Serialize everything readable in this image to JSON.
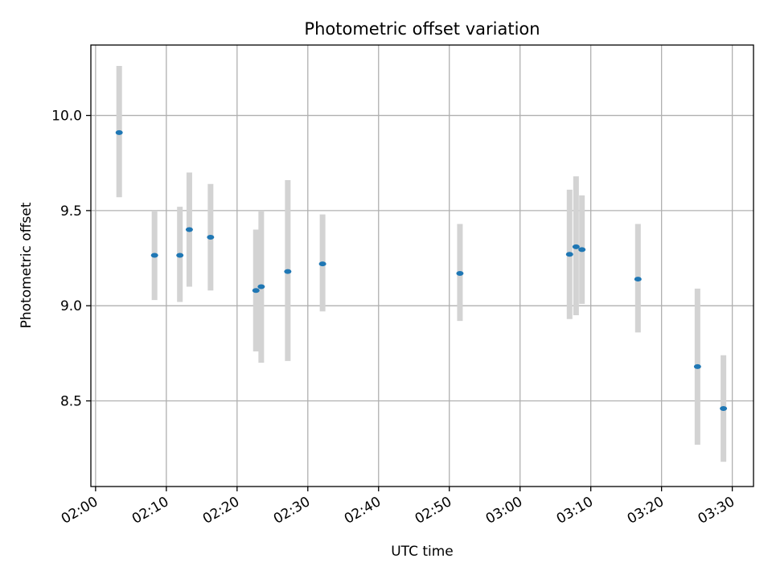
{
  "chart_data": {
    "type": "scatter",
    "title": "Photometric offset variation",
    "xlabel": "UTC time",
    "ylabel": "Photometric offset",
    "x_tick_labels": [
      "02:00",
      "02:10",
      "02:20",
      "02:30",
      "02:40",
      "02:50",
      "03:00",
      "03:10",
      "03:20",
      "03:30"
    ],
    "y_tick_labels": [
      "8.5",
      "9.0",
      "9.5",
      "10.0"
    ],
    "x_ticks": [
      "02:00",
      "02:10",
      "02:20",
      "02:30",
      "02:40",
      "02:50",
      "03:00",
      "03:10",
      "03:20",
      "03:30"
    ],
    "y_ticks": [
      8.5,
      9.0,
      9.5,
      10.0
    ],
    "xlim": [
      "01:59:20",
      "03:33:00"
    ],
    "ylim": [
      8.05,
      10.37
    ],
    "grid": true,
    "marker_color": "#1f77b4",
    "errorbar_color": "#d3d3d3",
    "points": [
      {
        "x": "02:03:20",
        "y": 9.91,
        "low": 9.57,
        "high": 10.26
      },
      {
        "x": "02:08:20",
        "y": 9.265,
        "low": 9.03,
        "high": 9.5
      },
      {
        "x": "02:11:55",
        "y": 9.265,
        "low": 9.02,
        "high": 9.52
      },
      {
        "x": "02:13:15",
        "y": 9.4,
        "low": 9.1,
        "high": 9.7
      },
      {
        "x": "02:16:15",
        "y": 9.36,
        "low": 9.08,
        "high": 9.64
      },
      {
        "x": "02:22:40",
        "y": 9.08,
        "low": 8.76,
        "high": 9.4
      },
      {
        "x": "02:23:25",
        "y": 9.1,
        "low": 8.7,
        "high": 9.5
      },
      {
        "x": "02:27:10",
        "y": 9.18,
        "low": 8.71,
        "high": 9.66
      },
      {
        "x": "02:32:05",
        "y": 9.22,
        "low": 8.97,
        "high": 9.48
      },
      {
        "x": "02:51:30",
        "y": 9.17,
        "low": 8.92,
        "high": 9.43
      },
      {
        "x": "03:07:00",
        "y": 9.27,
        "low": 8.93,
        "high": 9.61
      },
      {
        "x": "03:07:55",
        "y": 9.31,
        "low": 8.95,
        "high": 9.68
      },
      {
        "x": "03:08:45",
        "y": 9.295,
        "low": 9.01,
        "high": 9.58
      },
      {
        "x": "03:16:40",
        "y": 9.14,
        "low": 8.86,
        "high": 9.43
      },
      {
        "x": "03:25:05",
        "y": 8.68,
        "low": 8.27,
        "high": 9.09
      },
      {
        "x": "03:28:45",
        "y": 8.46,
        "low": 8.18,
        "high": 8.74
      }
    ]
  }
}
